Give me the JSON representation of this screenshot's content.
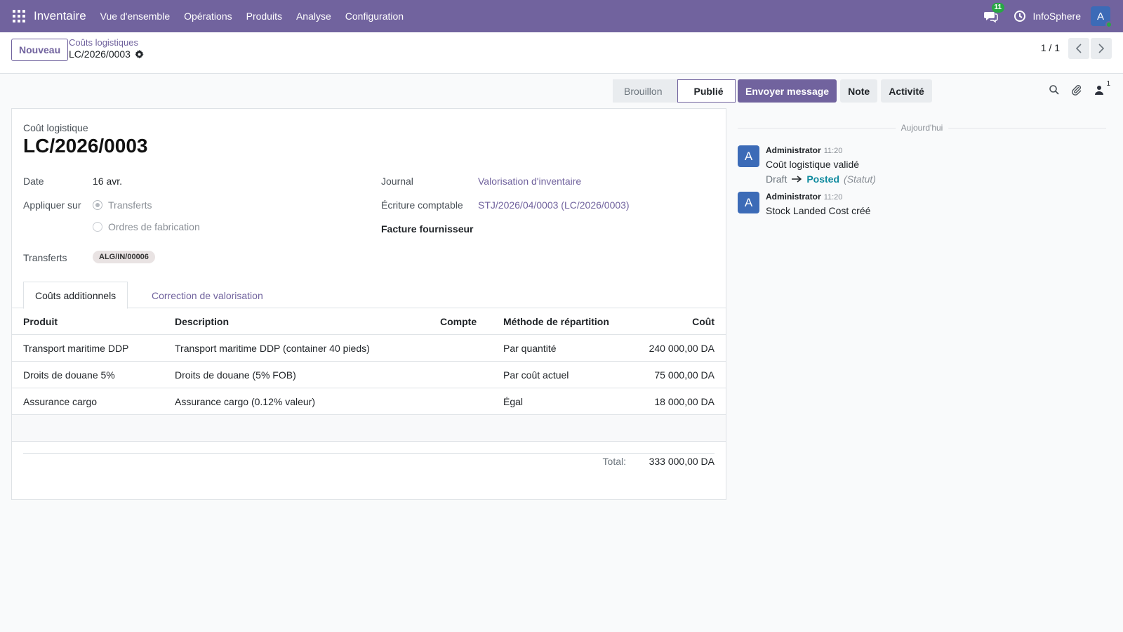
{
  "navbar": {
    "app_name": "Inventaire",
    "menu": [
      "Vue d'ensemble",
      "Opérations",
      "Produits",
      "Analyse",
      "Configuration"
    ],
    "messages_count": "11",
    "company": "InfoSphere",
    "user_initial": "A"
  },
  "control": {
    "new_label": "Nouveau",
    "breadcrumb": "Coûts logistiques",
    "record_name": "LC/2026/0003",
    "pager": "1 / 1"
  },
  "statusbar": {
    "stages": [
      "Brouillon",
      "Publié"
    ],
    "active": "Publié"
  },
  "form": {
    "label": "Coût logistique",
    "title": "LC/2026/0003",
    "date_label": "Date",
    "date_value": "16 avr.",
    "apply_label": "Appliquer sur",
    "apply_options": [
      "Transferts",
      "Ordres de fabrication"
    ],
    "apply_selected": "Transferts",
    "transfers_label": "Transferts",
    "transfer_tag": "ALG/IN/00006",
    "journal_label": "Journal",
    "journal_value": "Valorisation d'inventaire",
    "entry_label": "Écriture comptable",
    "entry_value": "STJ/2026/04/0003 (LC/2026/0003)",
    "vendor_bill_label": "Facture fournisseur"
  },
  "tabs": [
    "Coûts additionnels",
    "Correction de valorisation"
  ],
  "table": {
    "headers": {
      "product": "Produit",
      "description": "Description",
      "account": "Compte",
      "method": "Méthode de répartition",
      "cost": "Coût"
    },
    "rows": [
      {
        "product": "Transport maritime DDP",
        "description": "Transport maritime DDP (container 40 pieds)",
        "account": "",
        "method": "Par quantité",
        "cost": "240 000,00 DA"
      },
      {
        "product": "Droits de douane 5%",
        "description": "Droits de douane (5% FOB)",
        "account": "",
        "method": "Par coût actuel",
        "cost": "75 000,00 DA"
      },
      {
        "product": "Assurance cargo",
        "description": "Assurance cargo (0.12% valeur)",
        "account": "",
        "method": "Égal",
        "cost": "18 000,00 DA"
      }
    ],
    "total_label": "Total:",
    "total_value": "333 000,00 DA"
  },
  "chatter": {
    "buttons": [
      "Envoyer message",
      "Note",
      "Activité"
    ],
    "followers_count": "1",
    "day_separator": "Aujourd'hui",
    "messages": [
      {
        "avatar": "A",
        "author": "Administrator",
        "time": "11:20",
        "body": "Coût logistique validé",
        "change_old": "Draft",
        "change_new": "Posted",
        "change_field": "(Statut)"
      },
      {
        "avatar": "A",
        "author": "Administrator",
        "time": "11:20",
        "body": "Stock Landed Cost créé"
      }
    ]
  },
  "colors": {
    "brand": "#71639e",
    "avatar": "#3c6bb7",
    "success": "#28a745",
    "status_new": "#0f8a9e"
  }
}
